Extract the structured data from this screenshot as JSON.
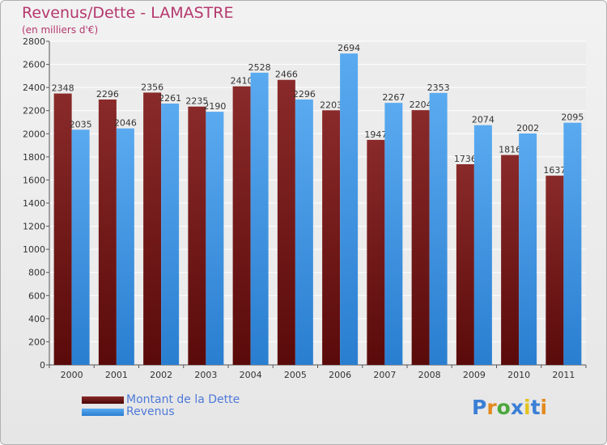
{
  "chart_data": {
    "type": "bar",
    "title": "Revenus/Dette - LAMASTRE",
    "subtitle": "(en milliers d'€)",
    "categories": [
      "2000",
      "2001",
      "2002",
      "2003",
      "2004",
      "2005",
      "2006",
      "2007",
      "2008",
      "2009",
      "2010",
      "2011"
    ],
    "series": [
      {
        "name": "Montant de la Dette",
        "color": "#7a1e1e",
        "values": [
          2348,
          2296,
          2356,
          2235,
          2410,
          2466,
          2203,
          1947,
          2204,
          1736,
          1816,
          1637
        ]
      },
      {
        "name": "Revenus",
        "color": "#3d8fe0",
        "values": [
          2035,
          2046,
          2261,
          2190,
          2528,
          2296,
          2694,
          2267,
          2353,
          2074,
          2002,
          2095
        ]
      }
    ],
    "ylim": [
      0,
      2800
    ],
    "yticks": [
      0,
      200,
      400,
      600,
      800,
      1000,
      1200,
      1400,
      1600,
      1800,
      2000,
      2200,
      2400,
      2600,
      2800
    ],
    "grid": true,
    "legend": "bottom-left"
  },
  "logo": {
    "letters": [
      {
        "char": "P",
        "color": "#3b7fd6"
      },
      {
        "char": "r",
        "color": "#e28a1e"
      },
      {
        "char": "o",
        "color": "#4aa83a"
      },
      {
        "char": "x",
        "color": "#3b7fd6"
      },
      {
        "char": "i",
        "color": "#e2c21e"
      },
      {
        "char": "t",
        "color": "#3b7fd6"
      },
      {
        "char": "i",
        "color": "#e28a1e"
      }
    ]
  }
}
